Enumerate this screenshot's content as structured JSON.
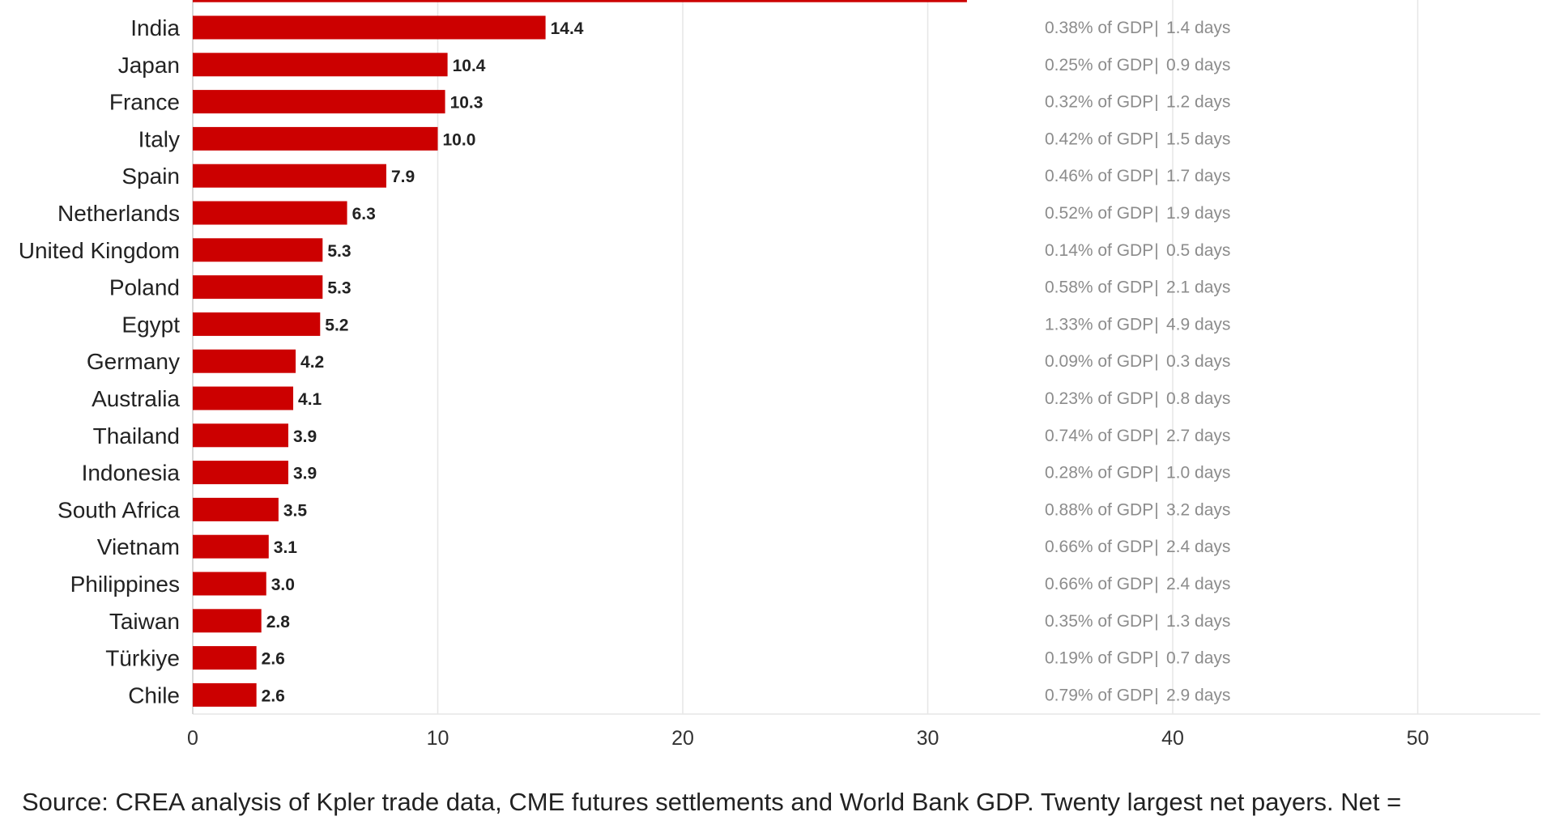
{
  "chart_data": {
    "type": "bar",
    "orientation": "horizontal",
    "categories": [
      "India",
      "Japan",
      "France",
      "Italy",
      "Spain",
      "Netherlands",
      "United Kingdom",
      "Poland",
      "Egypt",
      "Germany",
      "Australia",
      "Thailand",
      "Indonesia",
      "South Africa",
      "Vietnam",
      "Philippines",
      "Taiwan",
      "Türkiye",
      "Chile"
    ],
    "values": [
      14.4,
      10.4,
      10.3,
      10.0,
      7.9,
      6.3,
      5.3,
      5.3,
      5.2,
      4.2,
      4.1,
      3.9,
      3.9,
      3.5,
      3.1,
      3.0,
      2.8,
      2.6,
      2.6
    ],
    "value_labels": [
      "14.4",
      "10.4",
      "10.3",
      "10.0",
      "7.9",
      "6.3",
      "5.3",
      "5.3",
      "5.2",
      "4.2",
      "4.1",
      "3.9",
      "3.9",
      "3.5",
      "3.1",
      "3.0",
      "2.8",
      "2.6",
      "2.6"
    ],
    "annotations": [
      {
        "gdp": "0.38% of GDP",
        "days": "1.4 days"
      },
      {
        "gdp": "0.25% of GDP",
        "days": "0.9 days"
      },
      {
        "gdp": "0.32% of GDP",
        "days": "1.2 days"
      },
      {
        "gdp": "0.42% of GDP",
        "days": "1.5 days"
      },
      {
        "gdp": "0.46% of GDP",
        "days": "1.7 days"
      },
      {
        "gdp": "0.52% of GDP",
        "days": "1.9 days"
      },
      {
        "gdp": "0.14% of GDP",
        "days": "0.5 days"
      },
      {
        "gdp": "0.58% of GDP",
        "days": "2.1 days"
      },
      {
        "gdp": "1.33% of GDP",
        "days": "4.9 days"
      },
      {
        "gdp": "0.09% of GDP",
        "days": "0.3 days"
      },
      {
        "gdp": "0.23% of GDP",
        "days": "0.8 days"
      },
      {
        "gdp": "0.74% of GDP",
        "days": "2.7 days"
      },
      {
        "gdp": "0.28% of GDP",
        "days": "1.0 days"
      },
      {
        "gdp": "0.88% of GDP",
        "days": "3.2 days"
      },
      {
        "gdp": "0.66% of GDP",
        "days": "2.4 days"
      },
      {
        "gdp": "0.66% of GDP",
        "days": "2.4 days"
      },
      {
        "gdp": "0.35% of GDP",
        "days": "1.3 days"
      },
      {
        "gdp": "0.19% of GDP",
        "days": "0.7 days"
      },
      {
        "gdp": "0.79% of GDP",
        "days": "2.9 days"
      }
    ],
    "annotation_separator": "|",
    "partial_top_bar_value": 31.6,
    "x_ticks": [
      0,
      10,
      20,
      30,
      40,
      50
    ],
    "xlim": [
      0,
      55
    ],
    "grid": true,
    "bar_color": "#cc0000",
    "grid_color": "#e6e6e6",
    "title": "",
    "xlabel": "",
    "ylabel": ""
  },
  "source_note": "Source: CREA analysis of Kpler trade data, CME futures settlements and World Bank GDP. Twenty largest net payers. Net ="
}
